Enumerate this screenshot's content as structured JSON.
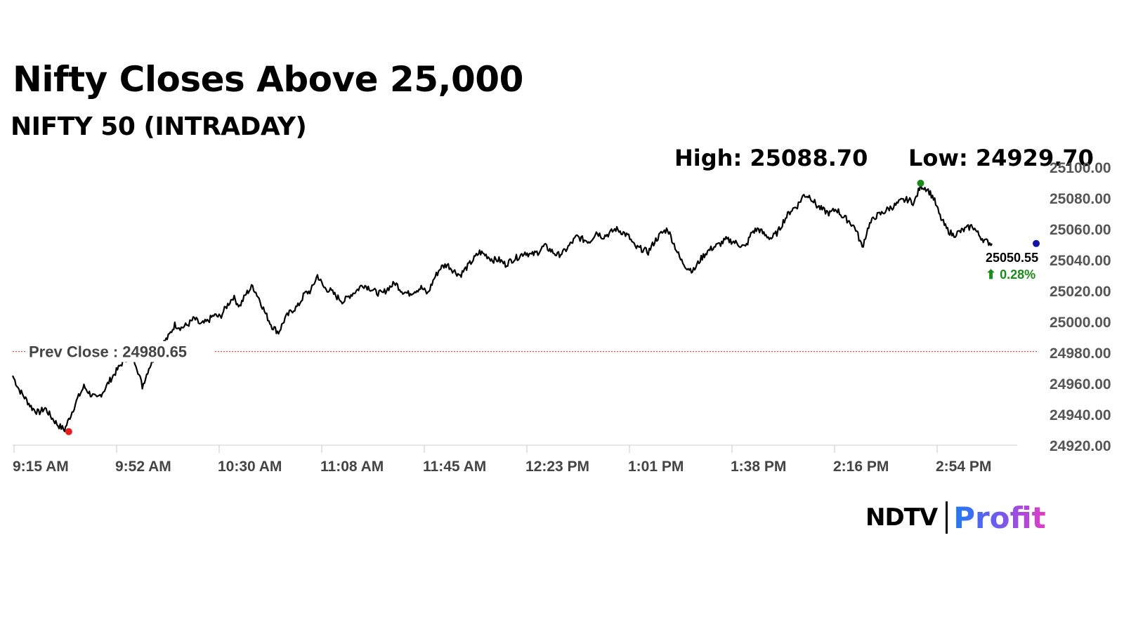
{
  "header": {
    "title": "Nifty Closes Above 25,000",
    "subtitle": "NIFTY 50 (INTRADAY)",
    "high_label": "High: 25088.70",
    "low_label": "Low: 24929.70"
  },
  "chart_data": {
    "type": "line",
    "series": [
      {
        "values": [
          24965,
          24956,
          24950,
          24944,
          24941,
          24944,
          24938,
          24933,
          24930,
          24940,
          24950,
          24958,
          24953,
          24950,
          24955,
          24962,
          24968,
          24974,
          24978,
          24973,
          24958,
          24970,
          24978,
          24985,
          24990,
          24998,
          24996,
          24998,
          25002,
          24998,
          25000,
          25004,
          25003,
          25010,
          25016,
          25010,
          25018,
          25023,
          25015,
          25005,
          24997,
          24993,
          25002,
          25007,
          25010,
          25018,
          25020,
          25030,
          25022,
          25020,
          25016,
          25013,
          25017,
          25020,
          25024,
          25022,
          25019,
          25018,
          25022,
          25025,
          25020,
          25018,
          25020,
          25022,
          25018,
          25028,
          25035,
          25037,
          25033,
          25030,
          25035,
          25040,
          25045,
          25043,
          25040,
          25040,
          25037,
          25040,
          25042,
          25045,
          25043,
          25045,
          25049,
          25046,
          25043,
          25045,
          25050,
          25055,
          25053,
          25052,
          25058,
          25055,
          25057,
          25060,
          25058,
          25055,
          25048,
          25047,
          25045,
          25052,
          25057,
          25060,
          25050,
          25040,
          25035,
          25033,
          25040,
          25045,
          25048,
          25050,
          25053,
          25052,
          25050,
          25048,
          25058,
          25060,
          25056,
          25054,
          25058,
          25066,
          25072,
          25075,
          25082,
          25081,
          25075,
          25072,
          25070,
          25073,
          25068,
          25065,
          25060,
          25048,
          25062,
          25068,
          25070,
          25073,
          25075,
          25078,
          25079,
          25077,
          25088,
          25086,
          25080,
          25068,
          25060,
          25056,
          25058,
          25060,
          25062,
          25056,
          25052,
          25050.55
        ]
      }
    ],
    "previous_close": 24980.65,
    "previous_close_label": "Prev Close : 24980.65",
    "high": 25088.7,
    "low": 24929.7,
    "last": 25050.55,
    "last_label": "25050.55",
    "change_label": "⬆ 0.28%",
    "x_tick_labels": [
      "9:15 AM",
      "9:52 AM",
      "10:30 AM",
      "11:08 AM",
      "11:45 AM",
      "12:23 PM",
      "1:01 PM",
      "1:38 PM",
      "2:16 PM",
      "2:54 PM"
    ],
    "y_ticks": [
      24920,
      24940,
      24960,
      24980,
      25000,
      25020,
      25040,
      25060,
      25080,
      25100
    ],
    "y_tick_labels": [
      "24920.00",
      "24940.00",
      "24960.00",
      "24980.00",
      "25000.00",
      "25020.00",
      "25040.00",
      "25060.00",
      "25080.00",
      "25100.00"
    ],
    "ylim": [
      24920,
      25100
    ],
    "grid": false,
    "colors": {
      "line": "#000000",
      "prev_close": "#e04848",
      "high_marker": "#1a8a1a",
      "low_marker": "#e41e1e",
      "last_marker": "#1414a0",
      "change": "#1a8a1a"
    }
  },
  "brand": {
    "ndtv": "NDTV",
    "profit": "Profit"
  }
}
